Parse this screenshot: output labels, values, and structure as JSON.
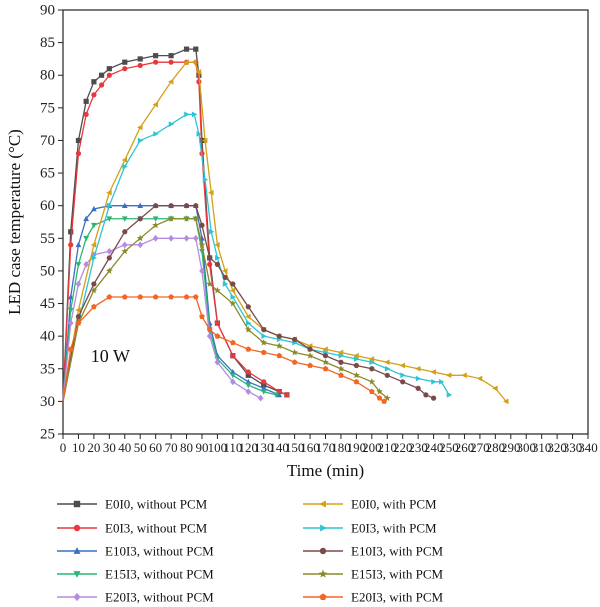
{
  "chart_data": {
    "type": "line",
    "xlabel": "Time (min)",
    "ylabel": "LED case temperature (°C)",
    "xlim": [
      0,
      340
    ],
    "ylim": [
      25,
      90
    ],
    "xticks": [
      0,
      10,
      20,
      30,
      40,
      50,
      60,
      70,
      80,
      90,
      100,
      110,
      120,
      130,
      140,
      150,
      160,
      170,
      180,
      190,
      200,
      210,
      220,
      230,
      240,
      250,
      260,
      270,
      280,
      290,
      300,
      310,
      320,
      330,
      340
    ],
    "yticks": [
      25,
      30,
      35,
      40,
      45,
      50,
      55,
      60,
      65,
      70,
      75,
      80,
      85,
      90
    ],
    "grid": false,
    "legend_placement": "bottom",
    "annotation": "10 W",
    "series": [
      {
        "name": "E0I0, without PCM",
        "color": "#4d4d4d",
        "marker": "square",
        "points": [
          [
            0,
            30
          ],
          [
            5,
            56
          ],
          [
            10,
            70
          ],
          [
            15,
            76
          ],
          [
            20,
            79
          ],
          [
            25,
            80
          ],
          [
            30,
            81
          ],
          [
            40,
            82
          ],
          [
            50,
            82.5
          ],
          [
            60,
            83
          ],
          [
            70,
            83
          ],
          [
            80,
            84
          ],
          [
            86,
            84
          ],
          [
            88,
            80
          ],
          [
            90,
            70
          ],
          [
            95,
            52
          ],
          [
            100,
            42
          ],
          [
            110,
            37
          ],
          [
            120,
            34
          ],
          [
            130,
            32.5
          ],
          [
            140,
            31.5
          ],
          [
            145,
            31
          ]
        ]
      },
      {
        "name": "E0I3, without PCM",
        "color": "#e8383d",
        "marker": "circle",
        "points": [
          [
            0,
            30
          ],
          [
            5,
            54
          ],
          [
            10,
            68
          ],
          [
            15,
            74
          ],
          [
            20,
            77
          ],
          [
            25,
            78.5
          ],
          [
            30,
            80
          ],
          [
            40,
            81
          ],
          [
            50,
            81.5
          ],
          [
            60,
            82
          ],
          [
            70,
            82
          ],
          [
            80,
            82
          ],
          [
            86,
            82
          ],
          [
            88,
            79
          ],
          [
            90,
            68
          ],
          [
            95,
            51
          ],
          [
            100,
            42
          ],
          [
            110,
            37
          ],
          [
            120,
            34.5
          ],
          [
            130,
            33
          ],
          [
            140,
            31.5
          ],
          [
            145,
            31
          ]
        ]
      },
      {
        "name": "E10I3, without PCM",
        "color": "#3a6fc4",
        "marker": "triangle-up",
        "points": [
          [
            0,
            30
          ],
          [
            5,
            46
          ],
          [
            10,
            54
          ],
          [
            15,
            58
          ],
          [
            20,
            59.5
          ],
          [
            30,
            60
          ],
          [
            40,
            60
          ],
          [
            50,
            60
          ],
          [
            60,
            60
          ],
          [
            70,
            60
          ],
          [
            80,
            60
          ],
          [
            86,
            60
          ],
          [
            90,
            55
          ],
          [
            95,
            42
          ],
          [
            100,
            37
          ],
          [
            110,
            34.5
          ],
          [
            120,
            33
          ],
          [
            130,
            32
          ],
          [
            140,
            31
          ]
        ]
      },
      {
        "name": "E15I3, without PCM",
        "color": "#2bb673",
        "marker": "triangle-down",
        "points": [
          [
            0,
            30
          ],
          [
            5,
            44
          ],
          [
            10,
            51
          ],
          [
            15,
            55
          ],
          [
            20,
            57
          ],
          [
            30,
            58
          ],
          [
            40,
            58
          ],
          [
            50,
            58
          ],
          [
            60,
            58
          ],
          [
            70,
            58
          ],
          [
            80,
            58
          ],
          [
            86,
            58
          ],
          [
            90,
            53
          ],
          [
            95,
            41
          ],
          [
            100,
            36.5
          ],
          [
            110,
            34
          ],
          [
            120,
            32.5
          ],
          [
            130,
            31.5
          ],
          [
            138,
            31
          ]
        ]
      },
      {
        "name": "E20I3, without PCM",
        "color": "#b48ce0",
        "marker": "diamond",
        "points": [
          [
            0,
            30
          ],
          [
            5,
            42
          ],
          [
            10,
            48
          ],
          [
            15,
            51
          ],
          [
            20,
            52.5
          ],
          [
            30,
            53
          ],
          [
            40,
            54
          ],
          [
            50,
            54
          ],
          [
            60,
            55
          ],
          [
            70,
            55
          ],
          [
            80,
            55
          ],
          [
            86,
            55
          ],
          [
            90,
            50
          ],
          [
            95,
            40
          ],
          [
            100,
            36
          ],
          [
            110,
            33
          ],
          [
            120,
            31.5
          ],
          [
            128,
            30.5
          ]
        ]
      },
      {
        "name": "E0I0, with PCM",
        "color": "#d4a017",
        "marker": "triangle-left",
        "points": [
          [
            0,
            30
          ],
          [
            10,
            44
          ],
          [
            20,
            54
          ],
          [
            30,
            62
          ],
          [
            40,
            67
          ],
          [
            50,
            72
          ],
          [
            60,
            75.5
          ],
          [
            70,
            79
          ],
          [
            80,
            82
          ],
          [
            85,
            82
          ],
          [
            88,
            80.5
          ],
          [
            92,
            70
          ],
          [
            96,
            62
          ],
          [
            100,
            54
          ],
          [
            105,
            50
          ],
          [
            110,
            47
          ],
          [
            120,
            43
          ],
          [
            130,
            41
          ],
          [
            140,
            40
          ],
          [
            150,
            39.5
          ],
          [
            160,
            38.5
          ],
          [
            170,
            38
          ],
          [
            180,
            37.5
          ],
          [
            190,
            37
          ],
          [
            200,
            36.5
          ],
          [
            210,
            36
          ],
          [
            220,
            35.5
          ],
          [
            230,
            35
          ],
          [
            240,
            34.5
          ],
          [
            250,
            34
          ],
          [
            260,
            34
          ],
          [
            270,
            33.5
          ],
          [
            280,
            32
          ],
          [
            287,
            30
          ]
        ]
      },
      {
        "name": "E0I3, with PCM",
        "color": "#2ec4d4",
        "marker": "triangle-right",
        "points": [
          [
            0,
            30
          ],
          [
            10,
            42
          ],
          [
            20,
            52
          ],
          [
            30,
            60
          ],
          [
            40,
            66
          ],
          [
            50,
            70
          ],
          [
            60,
            71
          ],
          [
            70,
            72.5
          ],
          [
            80,
            74
          ],
          [
            85,
            74
          ],
          [
            88,
            71
          ],
          [
            92,
            64
          ],
          [
            96,
            56
          ],
          [
            100,
            52
          ],
          [
            105,
            48
          ],
          [
            110,
            46
          ],
          [
            120,
            42
          ],
          [
            130,
            40
          ],
          [
            140,
            39.5
          ],
          [
            150,
            39
          ],
          [
            160,
            38
          ],
          [
            170,
            37.5
          ],
          [
            180,
            37
          ],
          [
            190,
            36.5
          ],
          [
            200,
            36
          ],
          [
            210,
            35
          ],
          [
            220,
            34
          ],
          [
            230,
            33.5
          ],
          [
            240,
            33
          ],
          [
            245,
            33
          ],
          [
            250,
            31
          ]
        ]
      },
      {
        "name": "E10I3, with PCM",
        "color": "#7a4a4a",
        "marker": "circle",
        "points": [
          [
            0,
            30
          ],
          [
            10,
            43
          ],
          [
            20,
            48
          ],
          [
            30,
            52
          ],
          [
            40,
            56
          ],
          [
            50,
            58
          ],
          [
            60,
            60
          ],
          [
            70,
            60
          ],
          [
            80,
            60
          ],
          [
            86,
            60
          ],
          [
            90,
            57
          ],
          [
            95,
            52
          ],
          [
            100,
            51
          ],
          [
            105,
            49
          ],
          [
            110,
            48
          ],
          [
            120,
            44.5
          ],
          [
            130,
            41
          ],
          [
            140,
            40
          ],
          [
            150,
            39.5
          ],
          [
            160,
            38
          ],
          [
            170,
            37
          ],
          [
            180,
            36
          ],
          [
            190,
            35.5
          ],
          [
            200,
            35
          ],
          [
            210,
            34
          ],
          [
            220,
            33
          ],
          [
            230,
            32
          ],
          [
            235,
            31
          ],
          [
            240,
            30.5
          ]
        ]
      },
      {
        "name": "E15I3, with PCM",
        "color": "#8a8a2a",
        "marker": "star",
        "points": [
          [
            0,
            30
          ],
          [
            10,
            42
          ],
          [
            20,
            47
          ],
          [
            30,
            50
          ],
          [
            40,
            53
          ],
          [
            50,
            55
          ],
          [
            60,
            57
          ],
          [
            70,
            58
          ],
          [
            80,
            58
          ],
          [
            86,
            58
          ],
          [
            90,
            54
          ],
          [
            95,
            48
          ],
          [
            100,
            47
          ],
          [
            110,
            45
          ],
          [
            120,
            41
          ],
          [
            130,
            39
          ],
          [
            140,
            38.5
          ],
          [
            150,
            37.5
          ],
          [
            160,
            37
          ],
          [
            170,
            36
          ],
          [
            180,
            35
          ],
          [
            190,
            34
          ],
          [
            200,
            33
          ],
          [
            205,
            31.5
          ],
          [
            210,
            30.5
          ]
        ]
      },
      {
        "name": "E20I3, with PCM",
        "color": "#f26522",
        "marker": "pentagon",
        "points": [
          [
            0,
            30
          ],
          [
            5,
            38
          ],
          [
            10,
            42
          ],
          [
            20,
            44.5
          ],
          [
            30,
            46
          ],
          [
            40,
            46
          ],
          [
            50,
            46
          ],
          [
            60,
            46
          ],
          [
            70,
            46
          ],
          [
            80,
            46
          ],
          [
            86,
            46
          ],
          [
            90,
            43
          ],
          [
            95,
            41
          ],
          [
            100,
            40
          ],
          [
            110,
            39
          ],
          [
            120,
            38
          ],
          [
            130,
            37.5
          ],
          [
            140,
            37
          ],
          [
            150,
            36
          ],
          [
            160,
            35.5
          ],
          [
            170,
            35
          ],
          [
            180,
            34
          ],
          [
            190,
            33
          ],
          [
            200,
            31.5
          ],
          [
            205,
            30.5
          ],
          [
            208,
            30
          ]
        ]
      }
    ]
  }
}
